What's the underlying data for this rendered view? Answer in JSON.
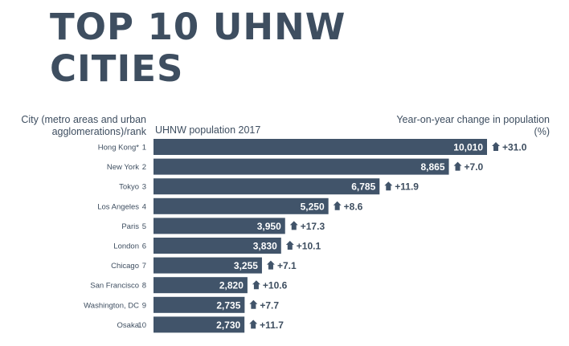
{
  "title_line1": "TOP 10 UHNW",
  "title_line2": "CITIES",
  "headers": {
    "city": "City (metro areas and urban agglomerations)/rank",
    "population": "UHNW population 2017",
    "change": "Year-on-year change in population (%)"
  },
  "colors": {
    "bar": "#41546a",
    "text": "#3e4e60",
    "bar_label": "#ffffff"
  },
  "chart_data": {
    "type": "bar",
    "orientation": "horizontal",
    "title": "TOP 10 UHNW CITIES",
    "xlabel": "UHNW population 2017",
    "ylabel": "City (metro areas and urban agglomerations)/rank",
    "xlim": [
      0,
      10500
    ],
    "categories": [
      "Hong Kong*",
      "New York",
      "Tokyo",
      "Los Angeles",
      "Paris",
      "London",
      "Chicago",
      "San Francisco",
      "Washington, DC",
      "Osaka"
    ],
    "ranks": [
      "1",
      "2",
      "3",
      "4",
      "5",
      "6",
      "7",
      "8",
      "9",
      "10"
    ],
    "values": [
      10010,
      8865,
      6785,
      5250,
      3950,
      3830,
      3255,
      2820,
      2735,
      2730
    ],
    "value_labels": [
      "10,010",
      "8,865",
      "6,785",
      "5,250",
      "3,950",
      "3,830",
      "3,255",
      "2,820",
      "2,735",
      "2,730"
    ],
    "change_labels": [
      "+31.0",
      "+7.0",
      "+11.9",
      "+8.6",
      "+17.3",
      "+10.1",
      "+7.1",
      "+10.6",
      "+7.7",
      "+11.7"
    ],
    "change_values": [
      31.0,
      7.0,
      11.9,
      8.6,
      17.3,
      10.1,
      7.1,
      10.6,
      7.7,
      11.7
    ],
    "change_icon": "up-arrow-icon"
  }
}
